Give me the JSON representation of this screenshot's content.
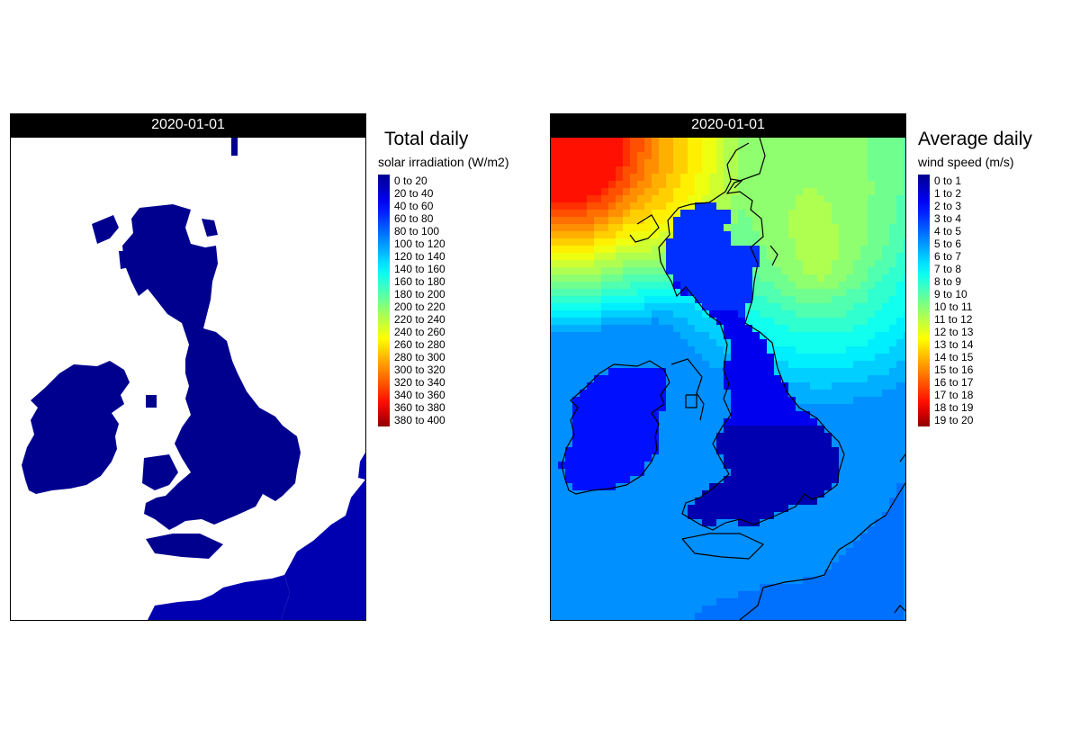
{
  "maps": [
    {
      "id": "solar",
      "date_header": "2020-01-01",
      "legend_title_line1": "Total daily",
      "legend_title_line2": "solar irradiation (W/m2)",
      "legend_labels": [
        "0 to 20",
        "20 to 40",
        "40 to 60",
        "60 to 80",
        "80 to 100",
        "100 to 120",
        "120 to 140",
        "140 to 160",
        "160 to 180",
        "180 to 200",
        "200 to 220",
        "220 to 240",
        "240 to 260",
        "260 to 280",
        "280 to 300",
        "300 to 320",
        "320 to 340",
        "340 to 360",
        "360 to 380",
        "380 to 400"
      ]
    },
    {
      "id": "wind",
      "date_header": "2020-01-01",
      "legend_title_line1": "Average daily",
      "legend_title_line2": "wind speed (m/s)",
      "legend_labels": [
        "0 to 1",
        "1 to 2",
        "2 to 3",
        "3 to 4",
        "4 to 5",
        "5 to 6",
        "6 to 7",
        "7 to 8",
        "8 to 9",
        "9 to 10",
        "10 to 11",
        "11 to 12",
        "12 to 13",
        "13 to 14",
        "14 to 15",
        "15 to 16",
        "16 to 17",
        "17 to 18",
        "18 to 19",
        "19 to 20"
      ]
    }
  ],
  "palette": [
    "#00008F",
    "#0000B0",
    "#0000D0",
    "#0000EF",
    "#0010FF",
    "#0030FF",
    "#0050FF",
    "#0070FF",
    "#0090FF",
    "#00AFFF",
    "#00CFFF",
    "#00EFFF",
    "#10FFEF",
    "#30FFCF",
    "#50FFAF",
    "#70FF8F",
    "#8FFF70",
    "#AFFF50",
    "#CFFF30",
    "#EFFF10",
    "#FFEF00",
    "#FFCF00",
    "#FFAF00",
    "#FF8F00",
    "#FF7000",
    "#FF5000",
    "#FF3000",
    "#FF1000",
    "#EF0000",
    "#CF0000",
    "#B00000",
    "#8F0000"
  ],
  "legend_colors": [
    "#00008F",
    "#0000C0",
    "#0000F0",
    "#0020FF",
    "#0050FF",
    "#0080FF",
    "#00B0FF",
    "#00E0FF",
    "#10FFEF",
    "#40FFBF",
    "#70FF8F",
    "#A0FF60",
    "#D0FF30",
    "#FFFF00",
    "#FFD000",
    "#FFA000",
    "#FF7000",
    "#FF4000",
    "#FF1000",
    "#D00000",
    "#8F0000"
  ]
}
